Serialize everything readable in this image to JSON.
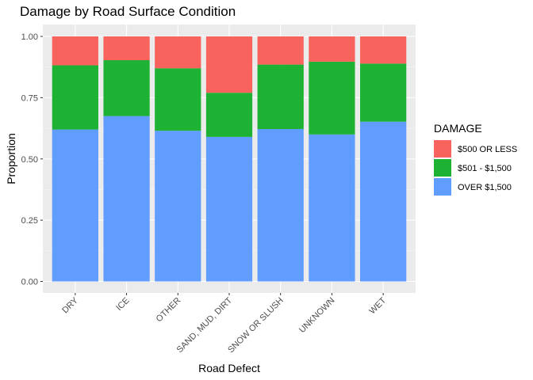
{
  "chart_data": {
    "type": "bar",
    "stacked": true,
    "title": "Damage by Road Surface Condition",
    "xlabel": "Road Defect",
    "ylabel": "Proportion",
    "ylim": [
      0,
      1
    ],
    "yticks": [
      0,
      0.25,
      0.5,
      0.75,
      1
    ],
    "ytick_labels": [
      "0.00",
      "0.25",
      "0.50",
      "0.75",
      "1.00"
    ],
    "grid": true,
    "legend_position": "right",
    "legend_title": "DAMAGE",
    "categories": [
      "DRY",
      "ICE",
      "OTHER",
      "SAND, MUD, DIRT",
      "SNOW OR SLUSH",
      "UNKNOWN",
      "WET"
    ],
    "series": [
      {
        "name": "OVER $1,500",
        "color": "#619CFF",
        "values": [
          0.62,
          0.675,
          0.615,
          0.59,
          0.622,
          0.6,
          0.652
        ]
      },
      {
        "name": "$501 - $1,500",
        "color": "#1DB233",
        "values": [
          0.262,
          0.228,
          0.255,
          0.18,
          0.263,
          0.297,
          0.237
        ]
      },
      {
        "name": "$500 OR LESS",
        "color": "#F8645D",
        "values": [
          0.118,
          0.097,
          0.13,
          0.23,
          0.115,
          0.103,
          0.111
        ]
      }
    ],
    "legend_order": [
      "$500 OR LESS",
      "$501 - $1,500",
      "OVER $1,500"
    ]
  }
}
